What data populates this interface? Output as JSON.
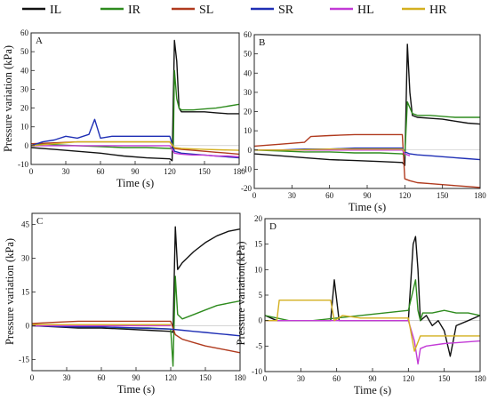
{
  "legend": [
    {
      "name": "IL",
      "color": "#111111"
    },
    {
      "name": "IR",
      "color": "#2e8b1e"
    },
    {
      "name": "SL",
      "color": "#b03a1e"
    },
    {
      "name": "SR",
      "color": "#1f2fb5"
    },
    {
      "name": "HL",
      "color": "#c23ad6"
    },
    {
      "name": "HR",
      "color": "#d4b020"
    }
  ],
  "chart_data": [
    {
      "panel": "A",
      "type": "line",
      "xlabel": "Time (s)",
      "ylabel": "Pressure variation (kPa)",
      "xlim": [
        0,
        180
      ],
      "ylim": [
        -10,
        60
      ],
      "xticks": [
        0,
        30,
        60,
        90,
        120,
        150,
        180
      ],
      "yticks": [
        -10,
        0,
        10,
        20,
        30,
        40,
        50,
        60
      ],
      "series": [
        {
          "name": "IL",
          "color": "#111111",
          "x": [
            0,
            20,
            40,
            60,
            80,
            100,
            120,
            122,
            124,
            126,
            128,
            130,
            140,
            150,
            160,
            170,
            180
          ],
          "y": [
            -1,
            -2,
            -3,
            -4,
            -5.5,
            -6.5,
            -7,
            -8,
            56,
            45,
            20,
            18,
            18,
            18,
            17.5,
            17,
            17
          ]
        },
        {
          "name": "IR",
          "color": "#2e8b1e",
          "x": [
            0,
            20,
            40,
            60,
            80,
            100,
            120,
            123,
            124,
            126,
            128,
            130,
            140,
            150,
            160,
            170,
            180
          ],
          "y": [
            1,
            0.5,
            0,
            -0.5,
            -1,
            -1,
            -1.5,
            -2,
            40,
            25,
            20,
            19,
            19,
            19.5,
            20,
            21,
            22
          ]
        },
        {
          "name": "SL",
          "color": "#b03a1e",
          "x": [
            0,
            20,
            40,
            60,
            80,
            100,
            120,
            124,
            130,
            140,
            150,
            160,
            170,
            180
          ],
          "y": [
            1,
            1.5,
            2,
            2,
            2,
            2,
            2,
            -1.5,
            -2,
            -2.5,
            -3,
            -3.5,
            -4,
            -4.5
          ]
        },
        {
          "name": "SR",
          "color": "#1f2fb5",
          "x": [
            0,
            10,
            20,
            30,
            40,
            50,
            55,
            60,
            70,
            80,
            90,
            100,
            110,
            120,
            124,
            130,
            140,
            150,
            160,
            170,
            180
          ],
          "y": [
            0,
            2,
            3,
            5,
            4,
            6,
            14,
            4,
            5,
            5,
            5,
            5,
            5,
            5,
            -3,
            -4,
            -4.5,
            -5,
            -5.5,
            -6,
            -6.5
          ]
        },
        {
          "name": "HL",
          "color": "#c23ad6",
          "x": [
            0,
            30,
            60,
            90,
            120,
            124,
            130,
            140,
            150,
            160,
            170,
            180
          ],
          "y": [
            0,
            0,
            0,
            0,
            0,
            -4,
            -4.5,
            -5,
            -5,
            -5.5,
            -5.5,
            -6
          ]
        },
        {
          "name": "HR",
          "color": "#d4b020",
          "x": [
            0,
            20,
            40,
            60,
            80,
            100,
            120,
            124,
            130,
            150,
            180
          ],
          "y": [
            0,
            1,
            2,
            2,
            2,
            2,
            2,
            -1,
            -1.5,
            -2,
            -2.5
          ]
        }
      ]
    },
    {
      "panel": "B",
      "type": "line",
      "xlabel": "Time (s)",
      "ylabel": "",
      "xlim": [
        0,
        180
      ],
      "ylim": [
        -20,
        60
      ],
      "xticks": [
        0,
        30,
        60,
        90,
        120,
        150,
        180
      ],
      "yticks": [
        -20,
        -10,
        0,
        10,
        20,
        30,
        40,
        50,
        60
      ],
      "series": [
        {
          "name": "IL",
          "color": "#111111",
          "x": [
            0,
            20,
            40,
            60,
            80,
            100,
            118,
            120,
            122,
            124,
            126,
            130,
            140,
            150,
            160,
            170,
            180
          ],
          "y": [
            -2,
            -3,
            -4,
            -5,
            -5.5,
            -6,
            -6.5,
            -8,
            55,
            30,
            18,
            17,
            16.5,
            16,
            15,
            14,
            13.5
          ]
        },
        {
          "name": "IR",
          "color": "#2e8b1e",
          "x": [
            0,
            20,
            40,
            60,
            80,
            100,
            118,
            120,
            122,
            124,
            126,
            130,
            140,
            150,
            160,
            170,
            180
          ],
          "y": [
            0,
            -0.5,
            -1,
            -1,
            -1.5,
            -1.5,
            -2,
            -3,
            25,
            22,
            19,
            18,
            18,
            17.5,
            17,
            17,
            17
          ]
        },
        {
          "name": "SL",
          "color": "#b03a1e",
          "x": [
            0,
            20,
            40,
            45,
            60,
            80,
            100,
            118,
            120,
            124,
            130,
            140,
            150,
            160,
            170,
            180
          ],
          "y": [
            2,
            3,
            4,
            7,
            7.5,
            8,
            8,
            8,
            -15,
            -16,
            -17,
            -17.5,
            -18,
            -18.5,
            -19,
            -19.5
          ]
        },
        {
          "name": "SR",
          "color": "#1f2fb5",
          "x": [
            0,
            20,
            40,
            60,
            80,
            100,
            118,
            120,
            124,
            130,
            140,
            150,
            160,
            170,
            180
          ],
          "y": [
            0,
            0,
            0.5,
            0.5,
            1,
            1,
            1,
            -1,
            -2,
            -2.5,
            -3,
            -3.5,
            -4,
            -4.5,
            -5
          ]
        },
        {
          "name": "HL",
          "color": "#c23ad6",
          "x": [
            0,
            30,
            60,
            90,
            118,
            120,
            124
          ],
          "y": [
            0,
            0,
            0,
            0,
            0,
            -2,
            -3
          ]
        },
        {
          "name": "HR",
          "color": "#d4b020",
          "x": [
            0,
            30,
            60,
            90,
            118,
            120
          ],
          "y": [
            0,
            0,
            0.5,
            0.5,
            0.5,
            -1
          ]
        }
      ]
    },
    {
      "panel": "C",
      "type": "line",
      "xlabel": "Time (s)",
      "ylabel": "Pressure variation (kPa)",
      "xlim": [
        0,
        180
      ],
      "ylim": [
        -20,
        50
      ],
      "xticks": [
        0,
        30,
        60,
        90,
        120,
        150,
        180
      ],
      "yticks": [
        -15,
        0,
        15,
        30,
        45
      ],
      "series": [
        {
          "name": "IL",
          "color": "#111111",
          "x": [
            0,
            20,
            40,
            60,
            80,
            100,
            120,
            122,
            124,
            126,
            130,
            140,
            150,
            160,
            170,
            180
          ],
          "y": [
            0,
            -0.5,
            -1,
            -1,
            -1.5,
            -2,
            -2.5,
            -3,
            44,
            25,
            28,
            33,
            37,
            40,
            42,
            43
          ]
        },
        {
          "name": "IR",
          "color": "#2e8b1e",
          "x": [
            0,
            20,
            40,
            60,
            80,
            100,
            120,
            122,
            124,
            126,
            130,
            140,
            150,
            160,
            170,
            180
          ],
          "y": [
            0,
            0,
            -0.5,
            -0.5,
            -1,
            -1,
            -1.5,
            -18,
            22,
            5,
            3,
            5,
            7,
            9,
            10,
            11
          ]
        },
        {
          "name": "SL",
          "color": "#b03a1e",
          "x": [
            0,
            20,
            40,
            60,
            80,
            100,
            120,
            124,
            130,
            140,
            150,
            160,
            170,
            180
          ],
          "y": [
            1,
            1.5,
            2,
            2,
            2,
            2,
            2,
            -4,
            -6,
            -7.5,
            -9,
            -10,
            -11,
            -12
          ]
        },
        {
          "name": "SR",
          "color": "#1f2fb5",
          "x": [
            0,
            30,
            60,
            90,
            120,
            130,
            140,
            150,
            160,
            170,
            180
          ],
          "y": [
            0,
            -0.5,
            -0.5,
            -1,
            -1.5,
            -2,
            -2.5,
            -3,
            -3.5,
            -4,
            -4.5
          ]
        },
        {
          "name": "HL",
          "color": "#c23ad6",
          "x": [
            0,
            30,
            60,
            90,
            120
          ],
          "y": [
            0,
            0,
            0,
            0,
            0
          ]
        },
        {
          "name": "HR",
          "color": "#d4b020",
          "x": [
            0,
            30,
            60,
            90,
            120
          ],
          "y": [
            0.5,
            0.5,
            0.5,
            0.5,
            0.5
          ]
        }
      ]
    },
    {
      "panel": "D",
      "type": "line",
      "xlabel": "Time (s)",
      "ylabel": "Pressure variation(kPa)",
      "xlim": [
        0,
        180
      ],
      "ylim": [
        -10,
        20
      ],
      "xticks": [
        0,
        30,
        60,
        90,
        120,
        150,
        180
      ],
      "yticks": [
        -10,
        -5,
        0,
        5,
        10,
        15,
        20
      ],
      "series": [
        {
          "name": "IL",
          "color": "#111111",
          "x": [
            0,
            10,
            30,
            55,
            58,
            62,
            80,
            100,
            120,
            124,
            126,
            128,
            130,
            135,
            140,
            145,
            150,
            155,
            160,
            170,
            180
          ],
          "y": [
            1,
            0,
            0,
            0,
            8,
            0,
            0,
            0,
            0,
            15,
            16.5,
            10,
            0,
            1,
            -1,
            0,
            -2,
            -7,
            -1,
            0,
            1
          ]
        },
        {
          "name": "IR",
          "color": "#2e8b1e",
          "x": [
            0,
            20,
            40,
            60,
            80,
            100,
            120,
            126,
            128,
            130,
            132,
            140,
            150,
            160,
            170,
            180
          ],
          "y": [
            1,
            0,
            0,
            0.5,
            1,
            1.5,
            2,
            8,
            2,
            0,
            1.5,
            1.5,
            2,
            1.5,
            1.5,
            1
          ]
        },
        {
          "name": "HL",
          "color": "#c23ad6",
          "x": [
            0,
            20,
            40,
            60,
            80,
            100,
            120,
            125,
            128,
            130,
            135,
            150,
            180
          ],
          "y": [
            0,
            0,
            0,
            0,
            0,
            0,
            0,
            -4,
            -8.5,
            -5.5,
            -5,
            -4.5,
            -4
          ]
        },
        {
          "name": "HR",
          "color": "#d4b020",
          "x": [
            0,
            10,
            12,
            55,
            58,
            65,
            80,
            100,
            120,
            125,
            130,
            135,
            150,
            180
          ],
          "y": [
            0,
            0,
            4,
            4,
            0,
            1,
            0.5,
            0.5,
            0.5,
            -6,
            -3,
            -3,
            -3,
            -3
          ]
        }
      ]
    }
  ]
}
